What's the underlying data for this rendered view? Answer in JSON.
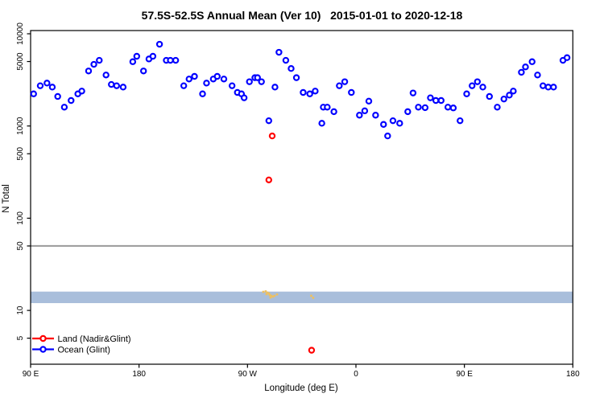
{
  "chart_data": {
    "type": "scatter",
    "title": "57.5S-52.5S Annual Mean (Ver 10)   2015-01-01 to 2020-12-18",
    "xlabel": "Longitude (deg E)",
    "ylabel": "N Total",
    "grid": false,
    "x_axis": {
      "min": 90,
      "max": 540,
      "ticks": [
        {
          "lon": 90,
          "label": "90 E"
        },
        {
          "lon": 180,
          "label": "180"
        },
        {
          "lon": 270,
          "label": "90 W"
        },
        {
          "lon": 360,
          "label": "0"
        },
        {
          "lon": 450,
          "label": "90 E"
        },
        {
          "lon": 540,
          "label": "180"
        }
      ]
    },
    "y_axis": {
      "scale": "log",
      "min": 2.6,
      "max": 11000,
      "ticks": [
        {
          "value": 10000,
          "label": "10000"
        },
        {
          "value": 5000,
          "label": "5000"
        },
        {
          "value": 1000,
          "label": "1000"
        },
        {
          "value": 500,
          "label": "500"
        },
        {
          "value": 100,
          "label": "100"
        },
        {
          "value": 50,
          "label": "50"
        },
        {
          "value": 10,
          "label": "10"
        },
        {
          "value": 5,
          "label": "5"
        }
      ]
    },
    "reference_line": {
      "y": 50,
      "color": "#9a9a9a"
    },
    "band": {
      "y_min": 12,
      "y_max": 16,
      "color": "#a9bedb"
    },
    "land_mask_marks": {
      "color": "#eec05f",
      "points": [
        [
          283.1,
          15.9
        ],
        [
          285.1,
          16.1
        ],
        [
          285.8,
          15.0
        ],
        [
          286.4,
          15.6
        ],
        [
          287.8,
          15.3
        ],
        [
          288.4,
          14.7
        ],
        [
          289.1,
          13.8
        ],
        [
          289.8,
          14.4
        ],
        [
          291.1,
          14.1
        ],
        [
          292.4,
          14.4
        ],
        [
          294.5,
          14.9
        ],
        [
          322.9,
          14.4
        ],
        [
          324.5,
          13.7
        ]
      ]
    },
    "legend": {
      "position": "bottom-left",
      "items": [
        {
          "label": "Land (Nadir&Glint)",
          "color": "#ff0000"
        },
        {
          "label": "Ocean (Glint)",
          "color": "#0000ff"
        }
      ]
    },
    "series": [
      {
        "id": "land",
        "name": "Land (Nadir&Glint)",
        "color": "#ff0000",
        "points": [
          [
            287.7,
            260
          ],
          [
            290.5,
            780
          ],
          [
            323.2,
            3.7
          ]
        ]
      },
      {
        "id": "ocean",
        "name": "Ocean (Glint)",
        "color": "#0000ff",
        "points": [
          [
            92.5,
            2230
          ],
          [
            98,
            2730
          ],
          [
            103.6,
            2920
          ],
          [
            108,
            2640
          ],
          [
            112.5,
            2090
          ],
          [
            118,
            1600
          ],
          [
            123.6,
            1890
          ],
          [
            129.2,
            2230
          ],
          [
            132.5,
            2390
          ],
          [
            138.1,
            3950
          ],
          [
            142.5,
            4660
          ],
          [
            147,
            5150
          ],
          [
            152.6,
            3570
          ],
          [
            157,
            2820
          ],
          [
            161.4,
            2730
          ],
          [
            166.8,
            2640
          ],
          [
            174.8,
            4980
          ],
          [
            178.1,
            5700
          ],
          [
            183.7,
            3950
          ],
          [
            188.2,
            5330
          ],
          [
            191.5,
            5700
          ],
          [
            197,
            7700
          ],
          [
            202.6,
            5150
          ],
          [
            206,
            5150
          ],
          [
            210.4,
            5150
          ],
          [
            217.1,
            2730
          ],
          [
            221.5,
            3230
          ],
          [
            226,
            3450
          ],
          [
            232.7,
            2230
          ],
          [
            236,
            2920
          ],
          [
            241.6,
            3230
          ],
          [
            244.9,
            3450
          ],
          [
            250.4,
            3230
          ],
          [
            257.2,
            2730
          ],
          [
            261.6,
            2310
          ],
          [
            265,
            2230
          ],
          [
            267.2,
            2020
          ],
          [
            271.6,
            3020
          ],
          [
            276.1,
            3340
          ],
          [
            278.3,
            3340
          ],
          [
            281.6,
            3020
          ],
          [
            287.7,
            1140
          ],
          [
            292.8,
            2640
          ],
          [
            296.1,
            6300
          ],
          [
            301.8,
            5150
          ],
          [
            306.2,
            4200
          ],
          [
            310.6,
            3340
          ],
          [
            316.2,
            2310
          ],
          [
            321.7,
            2230
          ],
          [
            326.2,
            2390
          ],
          [
            331.7,
            1070
          ],
          [
            332.9,
            1600
          ],
          [
            336.2,
            1600
          ],
          [
            341.7,
            1430
          ],
          [
            346.2,
            2730
          ],
          [
            350.7,
            3020
          ],
          [
            356.2,
            2310
          ],
          [
            362.9,
            1310
          ],
          [
            367.3,
            1460
          ],
          [
            370.7,
            1860
          ],
          [
            376.3,
            1310
          ],
          [
            382.9,
            1040
          ],
          [
            386.3,
            780
          ],
          [
            390.7,
            1140
          ],
          [
            396.3,
            1070
          ],
          [
            403,
            1430
          ],
          [
            407.4,
            2280
          ],
          [
            411.8,
            1600
          ],
          [
            417.4,
            1580
          ],
          [
            421.8,
            2020
          ],
          [
            426.3,
            1890
          ],
          [
            430.7,
            1890
          ],
          [
            436.3,
            1600
          ],
          [
            440.8,
            1570
          ],
          [
            446.4,
            1140
          ],
          [
            451.9,
            2230
          ],
          [
            456.4,
            2730
          ],
          [
            460.8,
            3020
          ],
          [
            465.3,
            2640
          ],
          [
            470.8,
            2090
          ],
          [
            477.3,
            1600
          ],
          [
            482.8,
            1960
          ],
          [
            487.3,
            2160
          ],
          [
            490.6,
            2390
          ],
          [
            497.3,
            3820
          ],
          [
            500.7,
            4370
          ],
          [
            506.2,
            4980
          ],
          [
            510.7,
            3570
          ],
          [
            515.2,
            2730
          ],
          [
            519.6,
            2640
          ],
          [
            524,
            2640
          ],
          [
            531.8,
            5150
          ],
          [
            535.2,
            5510
          ]
        ]
      }
    ]
  }
}
